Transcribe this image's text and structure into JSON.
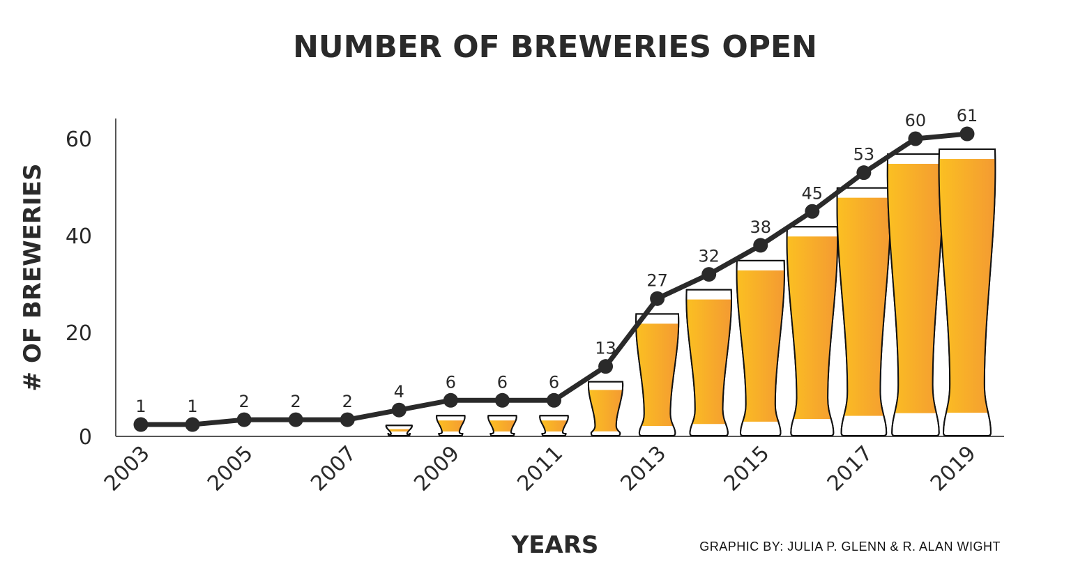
{
  "chart_data": {
    "type": "line",
    "title": "NUMBER OF BREWERIES OPEN",
    "xlabel": "YEARS",
    "ylabel": "# OF BREWERIES",
    "x": [
      2003,
      2004,
      2005,
      2006,
      2007,
      2008,
      2009,
      2010,
      2011,
      2012,
      2013,
      2014,
      2015,
      2016,
      2017,
      2018,
      2019
    ],
    "values": [
      1,
      1,
      2,
      2,
      2,
      4,
      6,
      6,
      6,
      13,
      27,
      32,
      38,
      45,
      53,
      60,
      61
    ],
    "x_tick_labels": [
      "2003",
      "2005",
      "2007",
      "2009",
      "2011",
      "2013",
      "2015",
      "2017",
      "2019"
    ],
    "y_ticks": [
      0,
      20,
      40,
      60
    ],
    "ylim": [
      0,
      66
    ],
    "xlim": [
      2003,
      2019
    ],
    "grid": false,
    "decoration": "beer glasses sized to each year's count",
    "colors": {
      "line": "#2a2a2a",
      "beer_light": "#ffd21a",
      "beer_dark": "#f0883a",
      "foam": "#ffffff",
      "glass_outline": "#111111"
    }
  },
  "credit": "GRAPHIC BY: JULIA P. GLENN & R. ALAN WIGHT"
}
